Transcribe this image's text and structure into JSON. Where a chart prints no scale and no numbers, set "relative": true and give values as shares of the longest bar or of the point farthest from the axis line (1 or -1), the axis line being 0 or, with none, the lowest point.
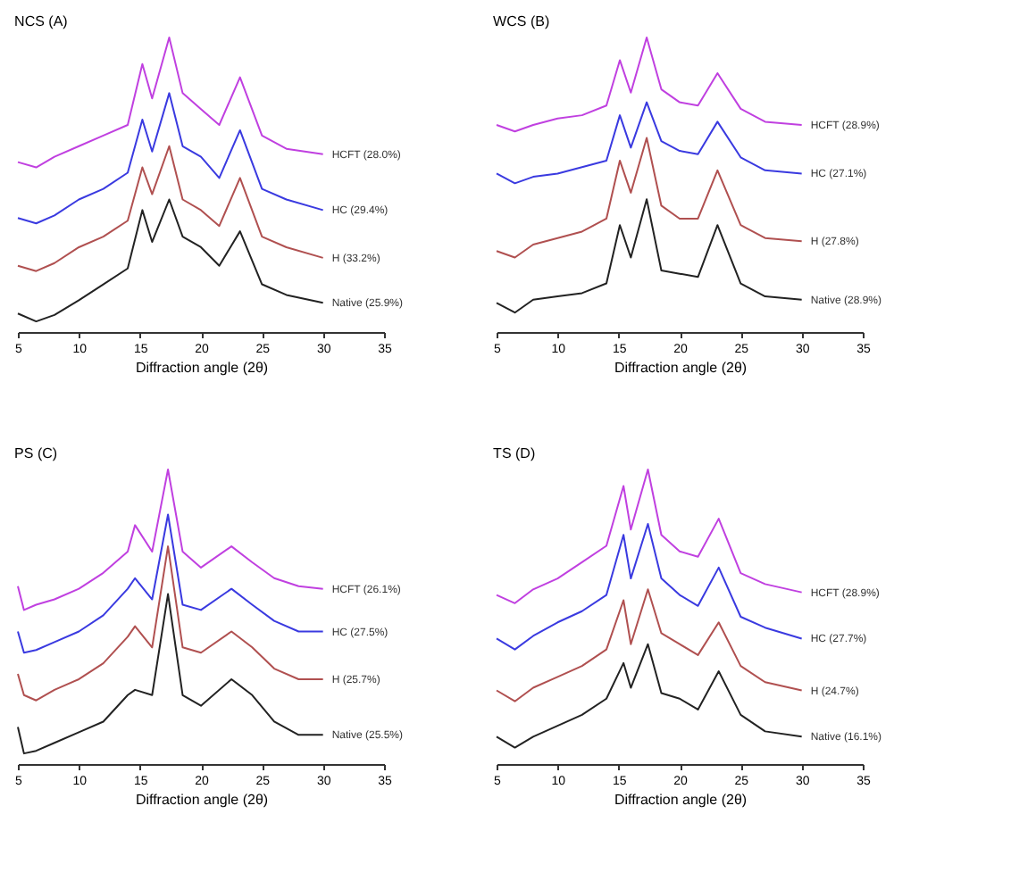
{
  "chart_data": [
    {
      "type": "line",
      "title": "NCS (A)",
      "xlabel": "Diffraction angle (2θ)",
      "relative": true,
      "xlim": [
        5,
        35
      ],
      "xticks": [
        5,
        10,
        15,
        20,
        25,
        30,
        35
      ],
      "grid": false,
      "legend": false,
      "tick_labels": "x",
      "x": [
        5,
        6.5,
        8,
        10,
        12,
        14,
        15.2,
        16,
        17.4,
        18.5,
        20,
        21.5,
        23.2,
        25,
        27,
        30
      ],
      "series": [
        {
          "name": "HCFT (28.0%)",
          "color": "#c040e0",
          "values": [
            0.577,
            0.559,
            0.595,
            0.631,
            0.667,
            0.703,
            0.91,
            0.793,
            1.0,
            0.811,
            0.757,
            0.703,
            0.865,
            0.667,
            0.622,
            0.604
          ]
        },
        {
          "name": "HC (29.4%)",
          "color": "#3a3ae0",
          "values": [
            0.387,
            0.369,
            0.396,
            0.45,
            0.486,
            0.541,
            0.721,
            0.613,
            0.811,
            0.631,
            0.595,
            0.523,
            0.685,
            0.486,
            0.45,
            0.414
          ]
        },
        {
          "name": "H (33.2%)",
          "color": "#b05050",
          "values": [
            0.225,
            0.207,
            0.234,
            0.288,
            0.324,
            0.378,
            0.559,
            0.468,
            0.631,
            0.45,
            0.414,
            0.36,
            0.523,
            0.324,
            0.288,
            0.252
          ]
        },
        {
          "name": "Native (25.9%)",
          "color": "#222222",
          "values": [
            0.063,
            0.036,
            0.058,
            0.108,
            0.162,
            0.216,
            0.414,
            0.306,
            0.45,
            0.324,
            0.288,
            0.225,
            0.342,
            0.162,
            0.126,
            0.099
          ]
        }
      ]
    },
    {
      "type": "line",
      "title": "WCS (B)",
      "xlabel": "Diffraction angle (2θ)",
      "relative": true,
      "xlim": [
        5,
        35
      ],
      "xticks": [
        5,
        10,
        15,
        20,
        25,
        30,
        35
      ],
      "grid": false,
      "legend": false,
      "tick_labels": "x",
      "x": [
        5,
        6.5,
        8,
        10,
        12,
        14,
        15.1,
        16,
        17.3,
        18.5,
        20,
        21.5,
        23.1,
        25,
        27,
        30
      ],
      "series": [
        {
          "name": "HCFT (28.9%)",
          "color": "#c040e0",
          "values": [
            0.703,
            0.681,
            0.703,
            0.725,
            0.736,
            0.769,
            0.923,
            0.813,
            1.0,
            0.824,
            0.78,
            0.769,
            0.879,
            0.758,
            0.714,
            0.703
          ]
        },
        {
          "name": "HC (27.1%)",
          "color": "#3a3ae0",
          "values": [
            0.538,
            0.505,
            0.527,
            0.538,
            0.56,
            0.582,
            0.736,
            0.626,
            0.78,
            0.648,
            0.615,
            0.604,
            0.714,
            0.593,
            0.549,
            0.538
          ]
        },
        {
          "name": "H (27.8%)",
          "color": "#b05050",
          "values": [
            0.275,
            0.253,
            0.297,
            0.319,
            0.341,
            0.385,
            0.582,
            0.473,
            0.659,
            0.429,
            0.385,
            0.385,
            0.549,
            0.363,
            0.319,
            0.308
          ]
        },
        {
          "name": "Native (28.9%)",
          "color": "#222222",
          "values": [
            0.099,
            0.066,
            0.11,
            0.121,
            0.132,
            0.165,
            0.363,
            0.253,
            0.451,
            0.209,
            0.198,
            0.187,
            0.363,
            0.165,
            0.121,
            0.11
          ]
        }
      ]
    },
    {
      "type": "line",
      "title": "PS (C)",
      "xlabel": "Diffraction angle (2θ)",
      "relative": true,
      "xlim": [
        5,
        35
      ],
      "xticks": [
        5,
        10,
        15,
        20,
        25,
        30,
        35
      ],
      "grid": false,
      "legend": false,
      "tick_labels": "x",
      "x": [
        5,
        5.5,
        6.5,
        8,
        10,
        12,
        14,
        14.6,
        16,
        17.3,
        18.5,
        20,
        22.5,
        24.2,
        26,
        28,
        30
      ],
      "series": [
        {
          "name": "HCFT (26.1%)",
          "color": "#c040e0",
          "values": [
            0.604,
            0.523,
            0.541,
            0.559,
            0.595,
            0.649,
            0.721,
            0.811,
            0.721,
            1.0,
            0.721,
            0.667,
            0.739,
            0.685,
            0.631,
            0.604,
            0.595
          ]
        },
        {
          "name": "HC (27.5%)",
          "color": "#3a3ae0",
          "values": [
            0.45,
            0.378,
            0.387,
            0.414,
            0.45,
            0.505,
            0.595,
            0.631,
            0.559,
            0.847,
            0.541,
            0.523,
            0.595,
            0.541,
            0.486,
            0.45,
            0.45
          ]
        },
        {
          "name": "H (25.7%)",
          "color": "#b05050",
          "values": [
            0.306,
            0.234,
            0.216,
            0.252,
            0.288,
            0.342,
            0.432,
            0.468,
            0.396,
            0.739,
            0.396,
            0.378,
            0.45,
            0.396,
            0.324,
            0.288,
            0.288
          ]
        },
        {
          "name": "Native (25.5%)",
          "color": "#222222",
          "values": [
            0.126,
            0.036,
            0.045,
            0.072,
            0.108,
            0.144,
            0.234,
            0.252,
            0.234,
            0.577,
            0.234,
            0.198,
            0.288,
            0.234,
            0.144,
            0.099,
            0.099
          ]
        }
      ]
    },
    {
      "type": "line",
      "title": "TS (D)",
      "xlabel": "Diffraction angle (2θ)",
      "relative": true,
      "xlim": [
        5,
        35
      ],
      "xticks": [
        5,
        10,
        15,
        20,
        25,
        30,
        35
      ],
      "grid": false,
      "legend": false,
      "tick_labels": "x",
      "x": [
        5,
        6.5,
        8,
        10,
        12,
        14,
        15.4,
        16,
        17.4,
        18.5,
        20,
        21.5,
        23.2,
        25,
        27,
        30
      ],
      "series": [
        {
          "name": "HCFT (28.9%)",
          "color": "#c040e0",
          "values": [
            0.574,
            0.546,
            0.593,
            0.63,
            0.685,
            0.741,
            0.944,
            0.796,
            1.0,
            0.778,
            0.722,
            0.704,
            0.833,
            0.648,
            0.611,
            0.583
          ]
        },
        {
          "name": "HC (27.7%)",
          "color": "#3a3ae0",
          "values": [
            0.426,
            0.389,
            0.435,
            0.481,
            0.519,
            0.574,
            0.778,
            0.63,
            0.815,
            0.63,
            0.574,
            0.537,
            0.667,
            0.5,
            0.463,
            0.426
          ]
        },
        {
          "name": "H (24.7%)",
          "color": "#b05050",
          "values": [
            0.25,
            0.213,
            0.259,
            0.296,
            0.333,
            0.389,
            0.556,
            0.407,
            0.593,
            0.444,
            0.407,
            0.37,
            0.481,
            0.333,
            0.278,
            0.25
          ]
        },
        {
          "name": "Native (16.1%)",
          "color": "#222222",
          "values": [
            0.093,
            0.056,
            0.093,
            0.13,
            0.167,
            0.222,
            0.343,
            0.259,
            0.407,
            0.241,
            0.222,
            0.185,
            0.315,
            0.167,
            0.111,
            0.093
          ]
        }
      ]
    }
  ]
}
